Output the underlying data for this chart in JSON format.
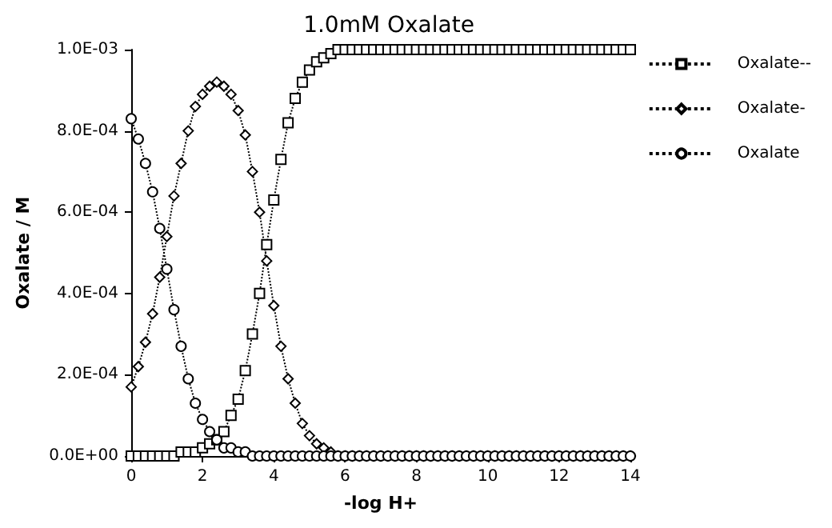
{
  "chart_data": {
    "type": "line",
    "title": "1.0mM Oxalate",
    "xlabel": "-log H+",
    "ylabel": "Oxalate / M",
    "x": [
      0,
      0.2,
      0.4,
      0.6,
      0.8,
      1,
      1.2,
      1.4,
      1.6,
      1.8,
      2,
      2.2,
      2.4,
      2.6,
      2.8,
      3,
      3.2,
      3.4,
      3.6,
      3.8,
      4,
      4.2,
      4.4,
      4.6,
      4.8,
      5,
      5.2,
      5.4,
      5.6,
      5.8,
      6,
      6.2,
      6.4,
      6.6,
      6.8,
      7,
      7.2,
      7.4,
      7.6,
      7.8,
      8,
      8.2,
      8.4,
      8.6,
      8.8,
      9,
      9.2,
      9.4,
      9.6,
      9.8,
      10,
      10.2,
      10.4,
      10.6,
      10.8,
      11,
      11.2,
      11.4,
      11.6,
      11.8,
      12,
      12.2,
      12.4,
      12.6,
      12.8,
      13,
      13.2,
      13.4,
      13.6,
      13.8,
      14
    ],
    "series": [
      {
        "name": "Oxalate--",
        "color": "#000000",
        "marker": "square",
        "values": [
          0,
          0,
          0,
          0,
          0,
          0,
          0,
          1e-05,
          1e-05,
          1e-05,
          2e-05,
          3e-05,
          4e-05,
          6e-05,
          0.0001,
          0.00014,
          0.00021,
          0.0003,
          0.0004,
          0.00052,
          0.00063,
          0.00073,
          0.00082,
          0.00088,
          0.00092,
          0.00095,
          0.00097,
          0.00098,
          0.00099,
          0.001,
          0.001,
          0.001,
          0.001,
          0.001,
          0.001,
          0.001,
          0.001,
          0.001,
          0.001,
          0.001,
          0.001,
          0.001,
          0.001,
          0.001,
          0.001,
          0.001,
          0.001,
          0.001,
          0.001,
          0.001,
          0.001,
          0.001,
          0.001,
          0.001,
          0.001,
          0.001,
          0.001,
          0.001,
          0.001,
          0.001,
          0.001,
          0.001,
          0.001,
          0.001,
          0.001,
          0.001,
          0.001,
          0.001,
          0.001,
          0.001,
          0.001
        ]
      },
      {
        "name": "Oxalate-",
        "color": "#000000",
        "marker": "diamond",
        "values": [
          0.00017,
          0.00022,
          0.00028,
          0.00035,
          0.00044,
          0.00054,
          0.00064,
          0.00072,
          0.0008,
          0.00086,
          0.00089,
          0.00091,
          0.00092,
          0.00091,
          0.00089,
          0.00085,
          0.00079,
          0.0007,
          0.0006,
          0.00048,
          0.00037,
          0.00027,
          0.00019,
          0.00013,
          8e-05,
          5e-05,
          3e-05,
          2e-05,
          1e-05,
          0,
          0,
          0,
          0,
          0,
          0,
          0,
          0,
          0,
          0,
          0,
          0,
          0,
          0,
          0,
          0,
          0,
          0,
          0,
          0,
          0,
          0,
          0,
          0,
          0,
          0,
          0,
          0,
          0,
          0,
          0,
          0,
          0,
          0,
          0,
          0,
          0,
          0,
          0,
          0,
          0,
          0
        ]
      },
      {
        "name": "Oxalate",
        "color": "#000000",
        "marker": "circle",
        "values": [
          0.00083,
          0.00078,
          0.00072,
          0.00065,
          0.00056,
          0.00046,
          0.00036,
          0.00027,
          0.00019,
          0.00013,
          9e-05,
          6e-05,
          4e-05,
          2e-05,
          2e-05,
          1e-05,
          1e-05,
          0,
          0,
          0,
          0,
          0,
          0,
          0,
          0,
          0,
          0,
          0,
          0,
          0,
          0,
          0,
          0,
          0,
          0,
          0,
          0,
          0,
          0,
          0,
          0,
          0,
          0,
          0,
          0,
          0,
          0,
          0,
          0,
          0,
          0,
          0,
          0,
          0,
          0,
          0,
          0,
          0,
          0,
          0,
          0,
          0,
          0,
          0,
          0,
          0,
          0,
          0,
          0,
          0,
          0
        ]
      }
    ],
    "xlim": [
      0,
      14
    ],
    "xticks": [
      0,
      2,
      4,
      6,
      8,
      10,
      12,
      14
    ],
    "ylim": [
      0,
      0.001
    ],
    "yticks": [
      {
        "value": 0,
        "label": "0.0E+00"
      },
      {
        "value": 0.0002,
        "label": "2.0E-04"
      },
      {
        "value": 0.0004,
        "label": "4.0E-04"
      },
      {
        "value": 0.0006,
        "label": "6.0E-04"
      },
      {
        "value": 0.0008,
        "label": "8.0E-04"
      },
      {
        "value": 0.001,
        "label": "1.0E-03"
      }
    ],
    "line_style": "dotted",
    "grid": false,
    "legend": "right"
  }
}
